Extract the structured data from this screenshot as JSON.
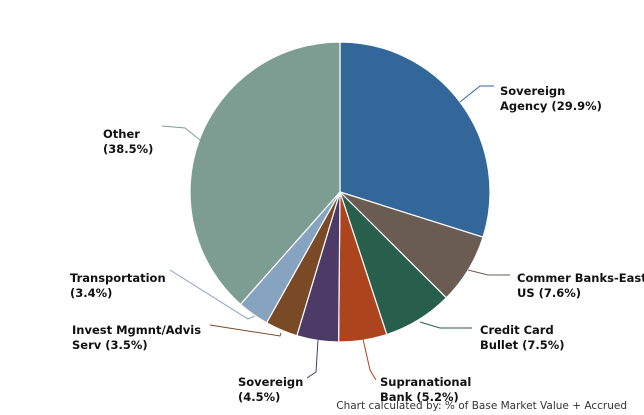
{
  "chart_data": {
    "type": "pie",
    "slices": [
      {
        "label_lines": [
          "Sovereign",
          "Agency (29.9%)"
        ],
        "category": "Sovereign Agency",
        "value": 29.9,
        "color": "#336699"
      },
      {
        "label_lines": [
          "Commer Banks-East",
          "US (7.6%)"
        ],
        "category": "Commer Banks-East US",
        "value": 7.6,
        "color": "#6b5c53"
      },
      {
        "label_lines": [
          "Credit Card",
          "Bullet (7.5%)"
        ],
        "category": "Credit Card Bullet",
        "value": 7.5,
        "color": "#285e4c"
      },
      {
        "label_lines": [
          "Supranational",
          "Bank (5.2%)"
        ],
        "category": "Supranational Bank",
        "value": 5.2,
        "color": "#ac441e"
      },
      {
        "label_lines": [
          "Sovereign",
          "(4.5%)"
        ],
        "category": "Sovereign",
        "value": 4.5,
        "color": "#4e3a66"
      },
      {
        "label_lines": [
          "Invest Mgmnt/Advis",
          "Serv (3.5%)"
        ],
        "category": "Invest Mgmnt/Advis Serv",
        "value": 3.5,
        "color": "#7a4a27"
      },
      {
        "label_lines": [
          "Transportation",
          "(3.4%)"
        ],
        "category": "Transportation",
        "value": 3.4,
        "color": "#86a3c0"
      },
      {
        "label_lines": [
          "Other",
          "(38.5%)"
        ],
        "category": "Other",
        "value": 38.5,
        "color": "#7d9d92"
      }
    ]
  },
  "footnote": "Chart calculated by: % of Base Market Value + Accrued"
}
